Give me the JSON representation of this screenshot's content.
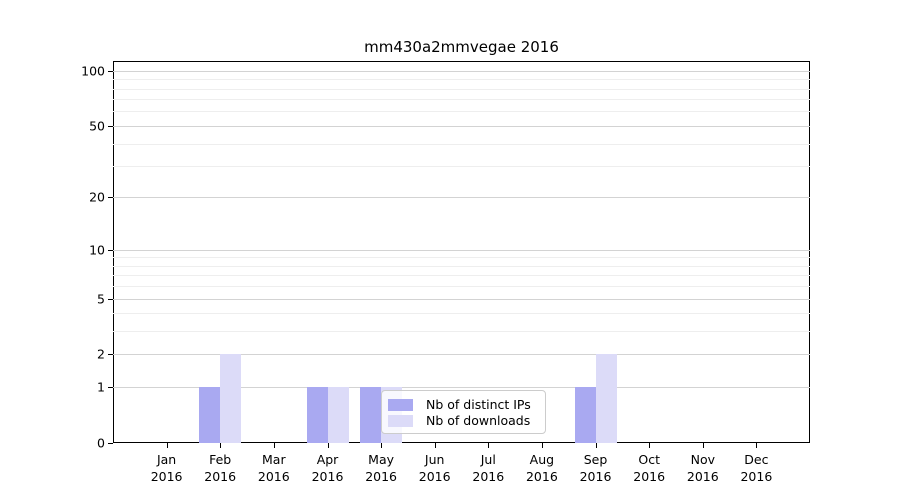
{
  "title": "mm430a2mmvegae 2016",
  "chart_data": {
    "type": "bar",
    "title": "mm430a2mmvegae 2016",
    "categories": [
      "Jan",
      "Feb",
      "Mar",
      "Apr",
      "May",
      "Jun",
      "Jul",
      "Aug",
      "Sep",
      "Oct",
      "Nov",
      "Dec"
    ],
    "year": "2016",
    "series": [
      {
        "name": "Nb of distinct IPs",
        "color": "#a9a9f1",
        "values": [
          0,
          1,
          0,
          1,
          1,
          0,
          0,
          0,
          1,
          0,
          0,
          0
        ]
      },
      {
        "name": "Nb of downloads",
        "color": "#dcdbf8",
        "values": [
          0,
          2,
          0,
          1,
          1,
          0,
          0,
          0,
          2,
          0,
          0,
          0
        ]
      }
    ],
    "xlabel": "",
    "ylabel": "",
    "yscale": "log1p",
    "ylim": [
      0,
      113
    ],
    "ytick_labels": [
      "100",
      "50",
      "20",
      "10",
      "5",
      "2",
      "1",
      "0"
    ],
    "ytick_values": [
      100,
      50,
      20,
      10,
      5,
      2,
      1,
      0
    ],
    "major_gridlines": [
      1,
      2,
      5,
      10,
      20,
      50,
      100
    ],
    "minor_gridlines": [
      3,
      4,
      6,
      7,
      8,
      9,
      30,
      40,
      60,
      70,
      80,
      90
    ],
    "grid": "horizontal",
    "legend_position": "inside-bottom-center"
  },
  "colors": {
    "major_grid": "#d3d3d3",
    "minor_grid": "#eeeeee",
    "spine": "#000000",
    "background": "#ffffff"
  }
}
